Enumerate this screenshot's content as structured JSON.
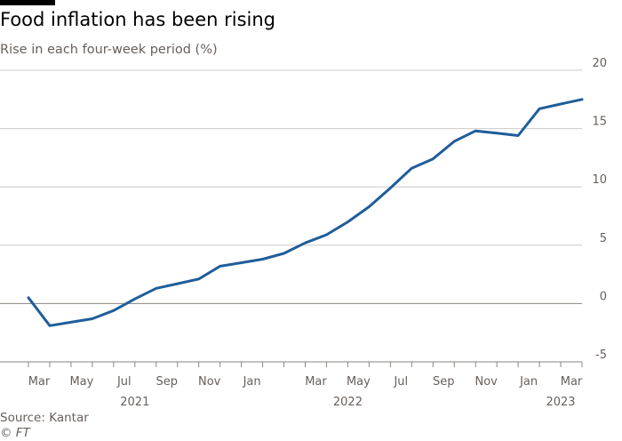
{
  "header": {
    "title": "Food inflation has been rising",
    "subtitle": "Rise in each four-week period (%)"
  },
  "footer": {
    "source": "Source: Kantar",
    "credit": "© FT"
  },
  "colors": {
    "line": "#1f5d9a",
    "grid": "#cecac6",
    "zero": "#8a8581",
    "accent_bar": "#000000"
  },
  "chart_data": {
    "type": "line",
    "title": "Food inflation has been rising",
    "subtitle": "Rise in each four-week period (%)",
    "xlabel": "",
    "ylabel": "",
    "ylim": [
      -5,
      20
    ],
    "y_ticks": [
      -5,
      0,
      5,
      10,
      15,
      20
    ],
    "grid": true,
    "legend": "none",
    "x_tick_labels": [
      "Mar",
      "May",
      "Jul",
      "Sep",
      "Nov",
      "Jan",
      "Mar",
      "May",
      "Jul",
      "Sep",
      "Nov",
      "Jan",
      "Mar"
    ],
    "x_year_labels": [
      {
        "label": "2021",
        "period": 5
      },
      {
        "label": "2022",
        "period": 15
      },
      {
        "label": "2023",
        "period": 25
      }
    ],
    "x_tick_periods": [
      0,
      1,
      2,
      3,
      4,
      5,
      6,
      7,
      8,
      9,
      10,
      11,
      12,
      13,
      14,
      15,
      16,
      17,
      18,
      19,
      20,
      21,
      22,
      23,
      24,
      25,
      26
    ],
    "x_label_periods": [
      0.5,
      2.5,
      4.5,
      6.5,
      8.5,
      10.5,
      13.5,
      15.5,
      17.5,
      19.5,
      21.5,
      23.5,
      25.5
    ],
    "x_range": [
      0,
      26
    ],
    "series": [
      {
        "name": "Food inflation",
        "x": [
          0,
          1,
          2,
          3,
          4,
          5,
          6,
          7,
          8,
          9,
          10,
          11,
          12,
          13,
          14,
          15,
          16,
          17,
          18,
          19,
          20,
          21,
          22,
          23,
          24,
          25,
          26
        ],
        "values": [
          0.5,
          -1.9,
          -1.6,
          -1.3,
          -0.6,
          0.4,
          1.3,
          1.7,
          2.1,
          3.2,
          3.5,
          3.8,
          4.3,
          5.2,
          5.9,
          7.0,
          8.3,
          9.9,
          11.6,
          12.4,
          13.9,
          14.8,
          14.6,
          14.4,
          16.7,
          17.1,
          17.5
        ]
      }
    ]
  }
}
